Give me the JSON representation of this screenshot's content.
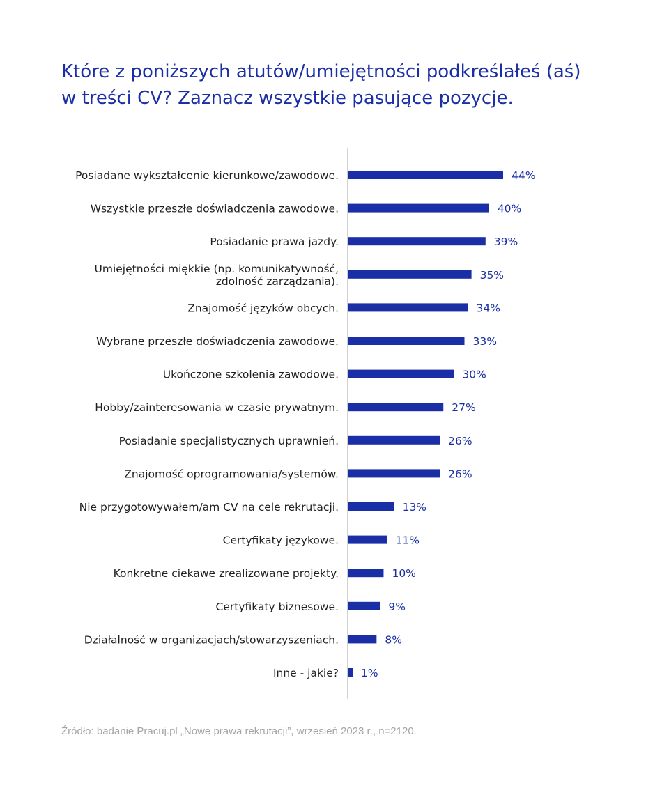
{
  "colors": {
    "bar": "#1a2fa6",
    "value_label": "#1a2fa6",
    "category_label": "#1f1f1f",
    "axis": "#b3b3b3",
    "title": "#1a2fa6",
    "source": "#a5a5a5"
  },
  "chart_data": {
    "type": "bar",
    "orientation": "horizontal",
    "title": "Które z poniższych atutów/umiejętności podkreślałeś (aś)\nw treści CV? Zaznacz wszystkie pasujące pozycje.",
    "xlabel": "",
    "ylabel": "",
    "xlim": [
      0,
      44
    ],
    "unit": "%",
    "grid": false,
    "categories": [
      [
        "Posiadane wykształcenie kierunkowe/zawodowe."
      ],
      [
        "Wszystkie przeszłe doświadczenia zawodowe."
      ],
      [
        "Posiadanie prawa jazdy."
      ],
      [
        "Umiejętności miękkie (np. komunikatywność,",
        "zdolność zarządzania)."
      ],
      [
        "Znajomość języków obcych."
      ],
      [
        "Wybrane przeszłe doświadczenia zawodowe."
      ],
      [
        "Ukończone szkolenia zawodowe."
      ],
      [
        "Hobby/zainteresowania w czasie prywatnym."
      ],
      [
        "Posiadanie specjalistycznych uprawnień."
      ],
      [
        "Znajomość oprogramowania/systemów."
      ],
      [
        "Nie przygotowywałem/am CV na cele rekrutacji."
      ],
      [
        "Certyfikaty językowe."
      ],
      [
        "Konkretne ciekawe zrealizowane projekty."
      ],
      [
        "Certyfikaty biznesowe."
      ],
      [
        "Działalność w organizacjach/stowarzyszeniach."
      ],
      [
        "Inne - jakie?"
      ]
    ],
    "values": [
      44,
      40,
      39,
      35,
      34,
      33,
      30,
      27,
      26,
      26,
      13,
      11,
      10,
      9,
      8,
      1
    ]
  },
  "source_note": "Źródło: badanie Pracuj.pl „Nowe prawa rekrutacji”, wrzesień 2023 r., n=2120."
}
